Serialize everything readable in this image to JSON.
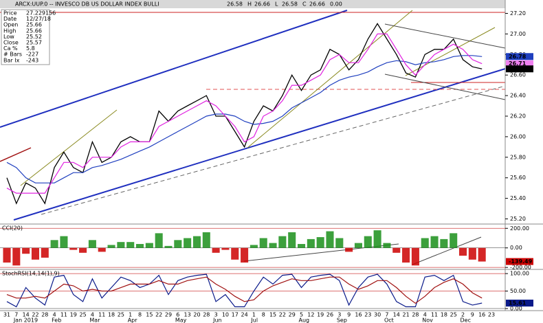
{
  "header": {
    "symbol": "ARCX:UUP.0 -- INVESCO DB US DOLLAR INDEX BULLI",
    "fields": [
      "26.58",
      "H",
      "26.66",
      "L",
      "26.58",
      "C",
      "26.66",
      "0.00"
    ]
  },
  "info": [
    [
      "Price",
      "27.229156"
    ],
    [
      "Date",
      "12/27/18"
    ],
    [
      "Open",
      "25.66"
    ],
    [
      "High",
      "25.66"
    ],
    [
      "Low",
      "25.52"
    ],
    [
      "Close",
      "25.57"
    ],
    [
      "Ca %",
      "5.8"
    ],
    [
      "# Bars",
      "-227"
    ],
    [
      "Bar Ix",
      "-243"
    ]
  ],
  "chart_data": [
    {
      "type": "line",
      "ylim": [
        25.15,
        27.25
      ],
      "yticks": [
        {
          "value": 25.2,
          "label": "25.20"
        },
        {
          "value": 25.4,
          "label": "25.40"
        },
        {
          "value": 25.6,
          "label": "25.60"
        },
        {
          "value": 25.8,
          "label": "25.80"
        },
        {
          "value": 26,
          "label": "26.00"
        },
        {
          "value": 26.2,
          "label": "26.20"
        },
        {
          "value": 26.4,
          "label": "26.40"
        },
        {
          "value": 26.6,
          "label": "26.60"
        },
        {
          "value": 26.8,
          "label": "26.80"
        },
        {
          "value": 27,
          "label": "27.00"
        },
        {
          "value": 27.2,
          "label": "27.20"
        }
      ],
      "series": [
        {
          "color": "#000000",
          "values": [
            25.6,
            25.35,
            25.55,
            25.5,
            25.35,
            25.7,
            25.85,
            25.7,
            25.65,
            25.95,
            25.75,
            25.8,
            25.95,
            26.0,
            25.95,
            25.95,
            26.25,
            26.15,
            26.25,
            26.3,
            26.35,
            26.4,
            26.2,
            26.2,
            26.05,
            25.9,
            26.15,
            26.3,
            26.25,
            26.4,
            26.6,
            26.45,
            26.6,
            26.65,
            26.85,
            26.8,
            26.65,
            26.75,
            26.95,
            27.1,
            26.95,
            26.8,
            26.62,
            26.58,
            26.8,
            26.85,
            26.85,
            26.95,
            26.75,
            26.68,
            26.66,
            null
          ]
        },
        {
          "color": "#1f3fbf",
          "values": [
            25.75,
            25.7,
            25.6,
            25.55,
            25.55,
            25.55,
            25.6,
            25.65,
            25.65,
            25.7,
            25.72,
            25.75,
            25.78,
            25.82,
            25.86,
            25.9,
            25.95,
            26.0,
            26.05,
            26.1,
            26.15,
            26.2,
            26.22,
            26.22,
            26.2,
            26.15,
            26.12,
            26.13,
            26.15,
            26.2,
            26.28,
            26.33,
            26.38,
            26.43,
            26.5,
            26.55,
            26.58,
            26.6,
            26.63,
            26.68,
            26.72,
            26.74,
            26.73,
            26.7,
            26.72,
            26.73,
            26.75,
            26.78,
            26.79,
            26.79,
            26.78,
            null
          ]
        },
        {
          "color": "#e020e0",
          "values": [
            25.5,
            25.45,
            25.45,
            25.45,
            25.45,
            25.6,
            25.75,
            25.75,
            25.7,
            25.8,
            25.8,
            25.8,
            25.9,
            25.95,
            25.95,
            25.95,
            26.1,
            26.15,
            26.2,
            26.25,
            26.3,
            26.35,
            26.3,
            26.2,
            26.1,
            25.95,
            26.0,
            26.2,
            26.25,
            26.35,
            26.5,
            26.5,
            26.55,
            26.6,
            26.75,
            26.8,
            26.72,
            26.72,
            26.85,
            27.0,
            27.0,
            26.85,
            26.7,
            26.6,
            26.7,
            26.8,
            26.85,
            26.9,
            26.85,
            26.75,
            26.71,
            null
          ]
        }
      ],
      "markers": [
        {
          "value": 26.78,
          "color": "#1f3fbf",
          "text_color": "#ffffff"
        },
        {
          "value": 26.71,
          "color": "#f080f0",
          "text_color": "#000000"
        },
        {
          "value": 26.66,
          "color": "#000000",
          "text_color": "#ffffff"
        }
      ]
    },
    {
      "type": "bar",
      "title": "CCI(20)",
      "ylim": [
        -220,
        244
      ],
      "yticks": [
        {
          "value": 200,
          "label": "200.00"
        },
        {
          "value": 0,
          "label": "0.00"
        },
        {
          "value": -200,
          "label": "-200.00"
        }
      ],
      "colors": {
        "positive": "#1a8f1a",
        "negative": "#cc0000"
      },
      "values": [
        -150,
        -180,
        -60,
        -120,
        -100,
        80,
        120,
        -20,
        -50,
        80,
        -40,
        30,
        60,
        60,
        40,
        50,
        150,
        20,
        80,
        100,
        120,
        160,
        -50,
        -20,
        -120,
        -150,
        30,
        100,
        50,
        120,
        160,
        40,
        90,
        110,
        170,
        100,
        -40,
        50,
        120,
        180,
        50,
        -50,
        -150,
        -180,
        100,
        120,
        90,
        150,
        -80,
        -120,
        -139.49,
        null
      ],
      "markers": [
        {
          "value": -139.49,
          "color": "#cc0000",
          "text_color": "#ffffff"
        }
      ]
    },
    {
      "type": "line",
      "title": "StochRSI(14,14(1),9)",
      "ylim": [
        -6,
        112
      ],
      "yticks": [
        {
          "value": 100,
          "label": "100.00"
        },
        {
          "value": 50,
          "label": "50.00"
        },
        {
          "value": 0,
          "label": "0.00"
        }
      ],
      "series": [
        {
          "color": "#0a1a8a",
          "values": [
            20,
            5,
            60,
            30,
            10,
            90,
            95,
            40,
            20,
            85,
            30,
            60,
            90,
            80,
            60,
            70,
            95,
            40,
            80,
            90,
            95,
            98,
            20,
            40,
            5,
            5,
            50,
            90,
            70,
            95,
            98,
            60,
            90,
            95,
            98,
            80,
            10,
            60,
            90,
            98,
            70,
            20,
            5,
            5,
            90,
            95,
            80,
            95,
            20,
            10,
            15.61,
            null
          ]
        },
        {
          "color": "#a01010",
          "values": [
            40,
            30,
            30,
            35,
            30,
            50,
            70,
            65,
            50,
            55,
            50,
            50,
            60,
            70,
            70,
            70,
            80,
            70,
            70,
            80,
            85,
            90,
            70,
            55,
            35,
            20,
            25,
            50,
            65,
            75,
            85,
            80,
            80,
            85,
            90,
            90,
            70,
            55,
            65,
            80,
            80,
            60,
            35,
            15,
            35,
            60,
            75,
            85,
            70,
            45,
            30,
            null
          ]
        }
      ],
      "markers": [
        {
          "value": 15.61,
          "color": "#0a1a8a",
          "text_color": "#ffffff"
        }
      ],
      "categories": [
        "31",
        "7",
        "14",
        "22",
        "28",
        "4",
        "11",
        "19",
        "25",
        "4",
        "11",
        "18",
        "25",
        "1",
        "8",
        "15",
        "22",
        "29",
        "6",
        "13",
        "20",
        "28",
        "3",
        "10",
        "17",
        "24",
        "1",
        "8",
        "15",
        "22",
        "29",
        "5",
        "12",
        "19",
        "26",
        "3",
        "9",
        "16",
        "23",
        "30",
        "7",
        "14",
        "21",
        "28",
        "4",
        "11",
        "18",
        "25",
        "2",
        "9",
        "16",
        "23"
      ],
      "months": [
        "Jan 2019",
        "Feb",
        "Mar",
        "Apr",
        "May",
        "Jun",
        "Jul",
        "Aug",
        "Sep",
        "Oct",
        "Nov",
        "Dec"
      ]
    }
  ]
}
